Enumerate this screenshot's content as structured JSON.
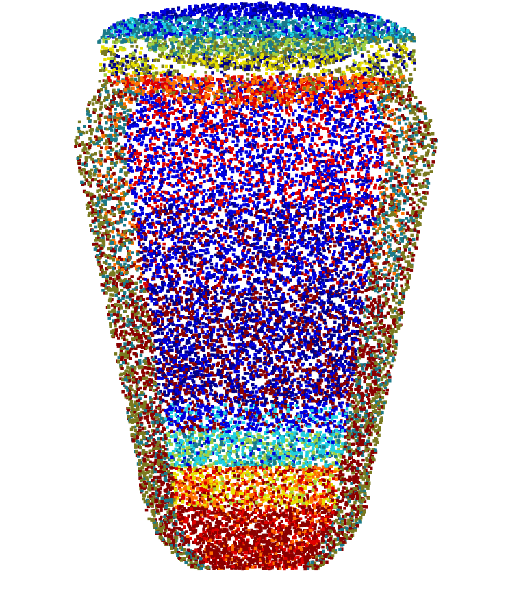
{
  "scene": {
    "subject": "jar",
    "background_color": "#ffffff",
    "colormap": "jet",
    "palette": {
      "deep_red": "#8b0000",
      "red": "#e00000",
      "orange": "#ff7000",
      "yellow": "#e8e000",
      "yellow_green": "#a0d040",
      "cyan": "#20d0e0",
      "teal": "#1a7a8a",
      "blue": "#0000e0",
      "navy": "#00008b",
      "olive": "#7a7a20"
    }
  }
}
